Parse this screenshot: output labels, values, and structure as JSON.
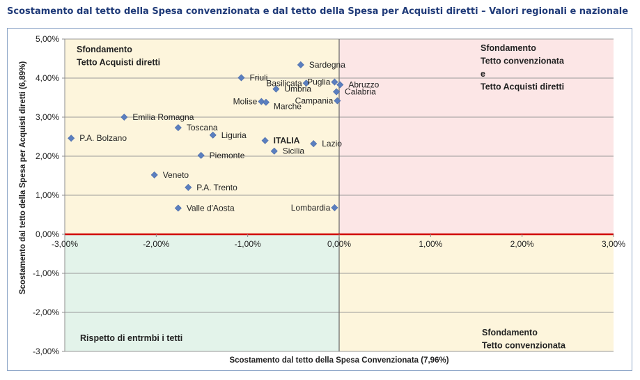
{
  "title": "Scostamento dal tetto della Spesa convenzionata e dal tetto della Spesa per Acquisti diretti – Valori regionali e nazionale",
  "colors": {
    "title": "#1f3a78",
    "marker": "#5b7fbf",
    "zero_line": "#d00000",
    "quad_top_left": "#fdf5dc",
    "quad_top_right": "#fce6e6",
    "quad_bottom_left": "#e3f3ea",
    "quad_bottom_right": "#fdf5dc",
    "grid": "#9a9a9a"
  },
  "chart_data": {
    "type": "scatter",
    "title": "Scostamento dal tetto della Spesa convenzionata e dal tetto della Spesa per Acquisti diretti – Valori regionali e nazionale",
    "xlabel": "Scostamento dal tetto della Spesa Convenzionata (7,96%)",
    "ylabel": "Scostamento dal tetto della Spesa per Acquisti diretti  (6,89%)",
    "xlim": [
      -3.0,
      3.0
    ],
    "ylim": [
      -3.0,
      5.0
    ],
    "x_ticks": [
      -3,
      -2,
      -1,
      0,
      1,
      2,
      3
    ],
    "x_tick_labels": [
      "-3,00%",
      "-2,00%",
      "-1,00%",
      "0,00%",
      "1,00%",
      "2,00%",
      "3,00%"
    ],
    "y_ticks": [
      -3,
      -2,
      -1,
      0,
      1,
      2,
      3,
      4,
      5
    ],
    "y_tick_labels": [
      "-3,00%",
      "-2,00%",
      "-1,00%",
      "0,00%",
      "1,00%",
      "2,00%",
      "3,00%",
      "4,00%",
      "5,00%"
    ],
    "grid": "horizontal",
    "points": [
      {
        "label": "Sardegna",
        "x": -0.42,
        "y": 4.34,
        "bold": false,
        "label_pos": "right"
      },
      {
        "label": "Friuli",
        "x": -1.07,
        "y": 4.01,
        "bold": false,
        "label_pos": "right"
      },
      {
        "label": "Basilicata",
        "x": -0.36,
        "y": 3.87,
        "bold": false,
        "label_pos": "left"
      },
      {
        "label": "Puglia",
        "x": -0.05,
        "y": 3.9,
        "bold": false,
        "label_pos": "left"
      },
      {
        "label": "Abruzzo",
        "x": 0.01,
        "y": 3.83,
        "bold": false,
        "label_pos": "right"
      },
      {
        "label": "Umbria",
        "x": -0.69,
        "y": 3.72,
        "bold": false,
        "label_pos": "right"
      },
      {
        "label": "Calabria",
        "x": -0.03,
        "y": 3.65,
        "bold": false,
        "label_pos": "right"
      },
      {
        "label": "Molise",
        "x": -0.85,
        "y": 3.4,
        "bold": false,
        "label_pos": "left"
      },
      {
        "label": "Marche",
        "x": -0.8,
        "y": 3.38,
        "bold": false,
        "label_pos": "right-below"
      },
      {
        "label": "Campania",
        "x": -0.02,
        "y": 3.42,
        "bold": false,
        "label_pos": "left"
      },
      {
        "label": "Emilia Romagna",
        "x": -2.35,
        "y": 3.0,
        "bold": false,
        "label_pos": "right"
      },
      {
        "label": "Toscana",
        "x": -1.76,
        "y": 2.73,
        "bold": false,
        "label_pos": "right"
      },
      {
        "label": "Liguria",
        "x": -1.38,
        "y": 2.54,
        "bold": false,
        "label_pos": "right"
      },
      {
        "label": "P.A. Bolzano",
        "x": -2.93,
        "y": 2.46,
        "bold": false,
        "label_pos": "right"
      },
      {
        "label": "ITALIA",
        "x": -0.81,
        "y": 2.4,
        "bold": true,
        "label_pos": "right"
      },
      {
        "label": "Lazio",
        "x": -0.28,
        "y": 2.32,
        "bold": false,
        "label_pos": "right"
      },
      {
        "label": "Sicilia",
        "x": -0.71,
        "y": 2.13,
        "bold": false,
        "label_pos": "right"
      },
      {
        "label": "Piemonte",
        "x": -1.51,
        "y": 2.02,
        "bold": false,
        "label_pos": "right"
      },
      {
        "label": "Veneto",
        "x": -2.02,
        "y": 1.52,
        "bold": false,
        "label_pos": "right"
      },
      {
        "label": "P.A. Trento",
        "x": -1.65,
        "y": 1.2,
        "bold": false,
        "label_pos": "right"
      },
      {
        "label": "Valle d'Aosta",
        "x": -1.76,
        "y": 0.67,
        "bold": false,
        "label_pos": "right"
      },
      {
        "label": "Lombardia",
        "x": -0.05,
        "y": 0.68,
        "bold": false,
        "label_pos": "left"
      }
    ],
    "quadrant_labels": [
      {
        "lines": [
          "Sfondamento",
          "Tetto Acquisti diretti"
        ],
        "quadrant": "top-left"
      },
      {
        "lines": [
          "Sfondamento",
          "Tetto convenzionata",
          "e",
          "Tetto Acquisti diretti"
        ],
        "quadrant": "top-right"
      },
      {
        "lines": [
          "Rispetto di entrmbi i tetti"
        ],
        "quadrant": "bottom-left"
      },
      {
        "lines": [
          "Sfondamento",
          "Tetto convenzionata"
        ],
        "quadrant": "bottom-right"
      }
    ]
  }
}
